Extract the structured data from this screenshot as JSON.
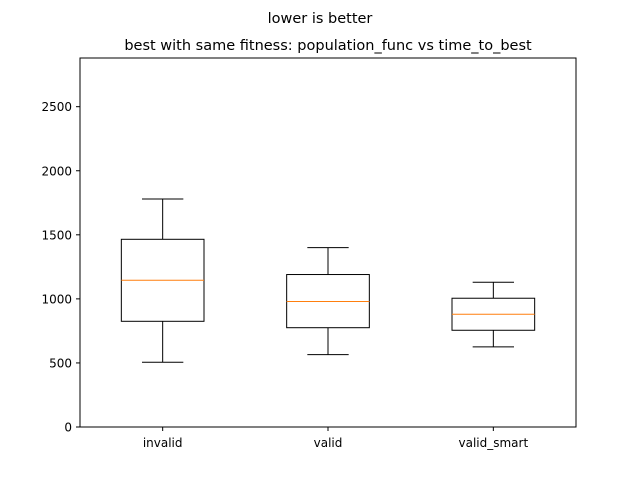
{
  "chart_data": {
    "type": "boxplot",
    "suptitle": "lower is better",
    "title": "best with same fitness: population_func vs time_to_best",
    "xlabel": "",
    "ylabel": "",
    "ylim": [
      0,
      2880
    ],
    "yticks": [
      0,
      500,
      1000,
      1500,
      2000,
      2500
    ],
    "grid": false,
    "categories": [
      "invalid",
      "valid",
      "valid_smart"
    ],
    "boxes": [
      {
        "name": "invalid",
        "whisker_low": 505,
        "q1": 825,
        "median": 1145,
        "q3": 1465,
        "whisker_high": 1780
      },
      {
        "name": "valid",
        "whisker_low": 565,
        "q1": 775,
        "median": 980,
        "q3": 1190,
        "whisker_high": 1400
      },
      {
        "name": "valid_smart",
        "whisker_low": 625,
        "q1": 755,
        "median": 880,
        "q3": 1005,
        "whisker_high": 1130
      }
    ],
    "colors": {
      "box": "#000000",
      "median": "#ff7f0e"
    }
  }
}
